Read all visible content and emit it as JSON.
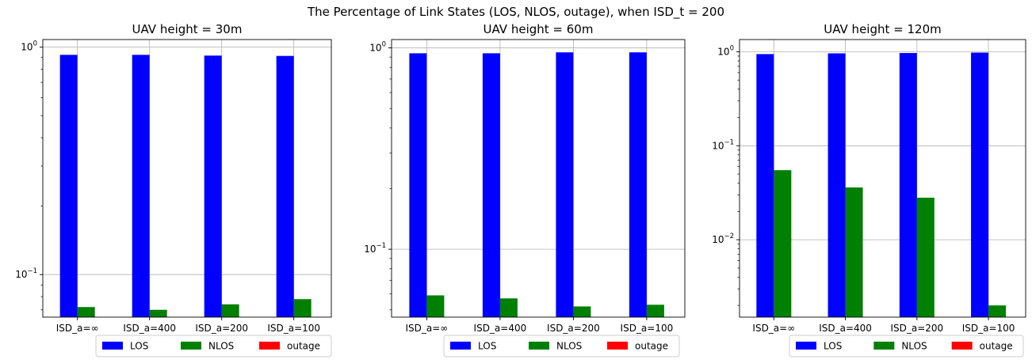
{
  "figure": {
    "suptitle": "The Percentage of Link States (LOS, NLOS, outage), when ISD_t = 200"
  },
  "chart_data": [
    {
      "type": "bar",
      "title": "UAV height = 30m",
      "yscale": "log",
      "ylim": [
        0.065,
        1.08
      ],
      "yticks": [
        {
          "value": 1,
          "base": "10",
          "exp": "0"
        },
        {
          "value": 0.1,
          "base": "10",
          "exp": "−1"
        }
      ],
      "categories": [
        "ISD_a=∞",
        "ISD_a=400",
        "ISD_a=200",
        "ISD_a=100"
      ],
      "series": [
        {
          "name": "LOS",
          "color": "#0000ff",
          "values": [
            0.925,
            0.925,
            0.918,
            0.915
          ]
        },
        {
          "name": "NLOS",
          "color": "#008000",
          "values": [
            0.072,
            0.07,
            0.074,
            0.078
          ]
        },
        {
          "name": "outage",
          "color": "#ff0000",
          "values": [
            0,
            0,
            0,
            0
          ]
        }
      ],
      "grid": true,
      "legend": {
        "position": "bottom-right",
        "entries": [
          "LOS",
          "NLOS",
          "outage"
        ]
      }
    },
    {
      "type": "bar",
      "title": "UAV height = 60m",
      "yscale": "log",
      "ylim": [
        0.046,
        1.1
      ],
      "yticks": [
        {
          "value": 1,
          "base": "10",
          "exp": "0"
        },
        {
          "value": 0.1,
          "base": "10",
          "exp": "−1"
        }
      ],
      "categories": [
        "ISD_a=∞",
        "ISD_a=400",
        "ISD_a=200",
        "ISD_a=100"
      ],
      "series": [
        {
          "name": "LOS",
          "color": "#0000ff",
          "values": [
            0.94,
            0.94,
            0.95,
            0.95
          ]
        },
        {
          "name": "NLOS",
          "color": "#008000",
          "values": [
            0.059,
            0.057,
            0.052,
            0.053
          ]
        },
        {
          "name": "outage",
          "color": "#ff0000",
          "values": [
            0,
            0,
            0,
            0
          ]
        }
      ],
      "grid": true,
      "legend": {
        "position": "bottom-right",
        "entries": [
          "LOS",
          "NLOS",
          "outage"
        ]
      }
    },
    {
      "type": "bar",
      "title": "UAV height = 120m",
      "yscale": "log",
      "ylim": [
        0.0015,
        1.35
      ],
      "yticks": [
        {
          "value": 1,
          "base": "10",
          "exp": "0"
        },
        {
          "value": 0.1,
          "base": "10",
          "exp": "−1"
        },
        {
          "value": 0.01,
          "base": "10",
          "exp": "−2"
        }
      ],
      "categories": [
        "ISD_a=∞",
        "ISD_a=400",
        "ISD_a=200",
        "ISD_a=100"
      ],
      "series": [
        {
          "name": "LOS",
          "color": "#0000ff",
          "values": [
            0.945,
            0.962,
            0.97,
            0.98
          ]
        },
        {
          "name": "NLOS",
          "color": "#008000",
          "values": [
            0.055,
            0.036,
            0.028,
            0.002
          ]
        },
        {
          "name": "outage",
          "color": "#ff0000",
          "values": [
            0,
            0,
            0,
            0
          ]
        }
      ],
      "grid": true,
      "legend": {
        "position": "bottom-right",
        "entries": [
          "LOS",
          "NLOS",
          "outage"
        ]
      }
    }
  ]
}
